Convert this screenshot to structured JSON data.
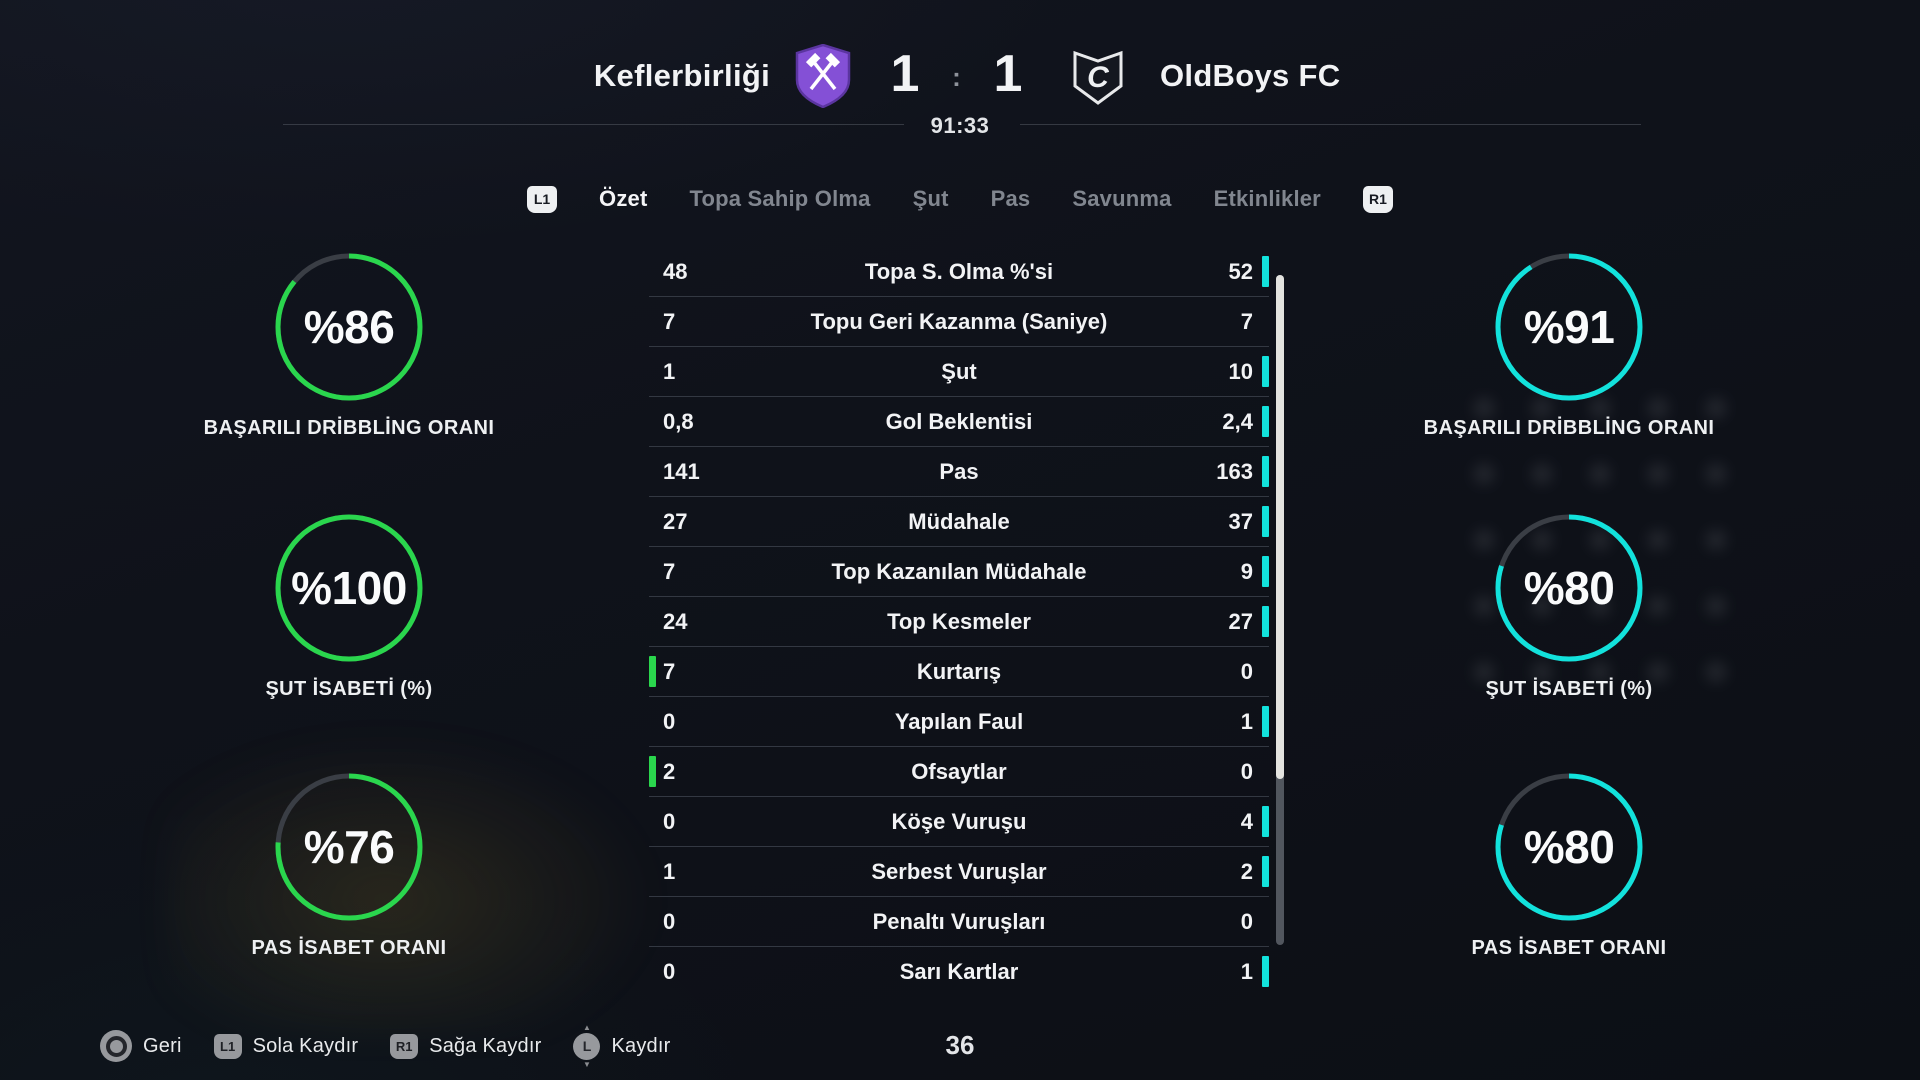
{
  "colors": {
    "home_accent": "#2ad64d",
    "away_accent": "#12e2dc",
    "inactive_tab": "#81868f"
  },
  "header": {
    "home_team": "Keflerbirliği",
    "away_team": "OldBoys FC",
    "home_score": "1",
    "away_score": "1",
    "score_separator": ":",
    "match_time": "91:33",
    "away_logo_letter": "C"
  },
  "tabs": {
    "left_bumper": "L1",
    "right_bumper": "R1",
    "items": [
      {
        "label": "Özet",
        "active": true
      },
      {
        "label": "Topa Sahip Olma",
        "active": false
      },
      {
        "label": "Şut",
        "active": false
      },
      {
        "label": "Pas",
        "active": false
      },
      {
        "label": "Savunma",
        "active": false
      },
      {
        "label": "Etkinlikler",
        "active": false
      }
    ]
  },
  "gauges": {
    "left": [
      {
        "value": 86,
        "display": "%86",
        "label": "BAŞARILI DRİBBLİNG ORANI"
      },
      {
        "value": 100,
        "display": "%100",
        "label": "ŞUT İSABETİ (%)"
      },
      {
        "value": 76,
        "display": "%76",
        "label": "PAS İSABET ORANI"
      }
    ],
    "right": [
      {
        "value": 91,
        "display": "%91",
        "label": "BAŞARILI DRİBBLİNG ORANI"
      },
      {
        "value": 80,
        "display": "%80",
        "label": "ŞUT İSABETİ (%)"
      },
      {
        "value": 80,
        "display": "%80",
        "label": "PAS İSABET ORANI"
      }
    ]
  },
  "stats": {
    "rows": [
      {
        "home": "48",
        "label": "Topa S. Olma %'si",
        "away": "52",
        "leader": "away"
      },
      {
        "home": "7",
        "label": "Topu Geri Kazanma (Saniye)",
        "away": "7",
        "leader": "none"
      },
      {
        "home": "1",
        "label": "Şut",
        "away": "10",
        "leader": "away"
      },
      {
        "home": "0,8",
        "label": "Gol Beklentisi",
        "away": "2,4",
        "leader": "away"
      },
      {
        "home": "141",
        "label": "Pas",
        "away": "163",
        "leader": "away"
      },
      {
        "home": "27",
        "label": "Müdahale",
        "away": "37",
        "leader": "away"
      },
      {
        "home": "7",
        "label": "Top Kazanılan Müdahale",
        "away": "9",
        "leader": "away"
      },
      {
        "home": "24",
        "label": "Top Kesmeler",
        "away": "27",
        "leader": "away"
      },
      {
        "home": "7",
        "label": "Kurtarış",
        "away": "0",
        "leader": "home"
      },
      {
        "home": "0",
        "label": "Yapılan Faul",
        "away": "1",
        "leader": "away"
      },
      {
        "home": "2",
        "label": "Ofsaytlar",
        "away": "0",
        "leader": "home"
      },
      {
        "home": "0",
        "label": "Köşe Vuruşu",
        "away": "4",
        "leader": "away"
      },
      {
        "home": "1",
        "label": "Serbest Vuruşlar",
        "away": "2",
        "leader": "away"
      },
      {
        "home": "0",
        "label": "Penaltı Vuruşları",
        "away": "0",
        "leader": "none"
      },
      {
        "home": "0",
        "label": "Sarı Kartlar",
        "away": "1",
        "leader": "away"
      }
    ]
  },
  "icons": {
    "home_logo": "shield-crossed-hammers",
    "away_logo": "shield-letter-c",
    "up_arrow": "▲",
    "down_arrow": "▼"
  },
  "bottom_bar": {
    "page_indicator": "36",
    "hints": [
      {
        "type": "circle",
        "button": "",
        "label": "Geri"
      },
      {
        "type": "bumper",
        "button": "L1",
        "label": "Sola Kaydır"
      },
      {
        "type": "bumper",
        "button": "R1",
        "label": "Sağa Kaydır"
      },
      {
        "type": "stick",
        "button": "L",
        "label": "Kaydır"
      }
    ]
  }
}
